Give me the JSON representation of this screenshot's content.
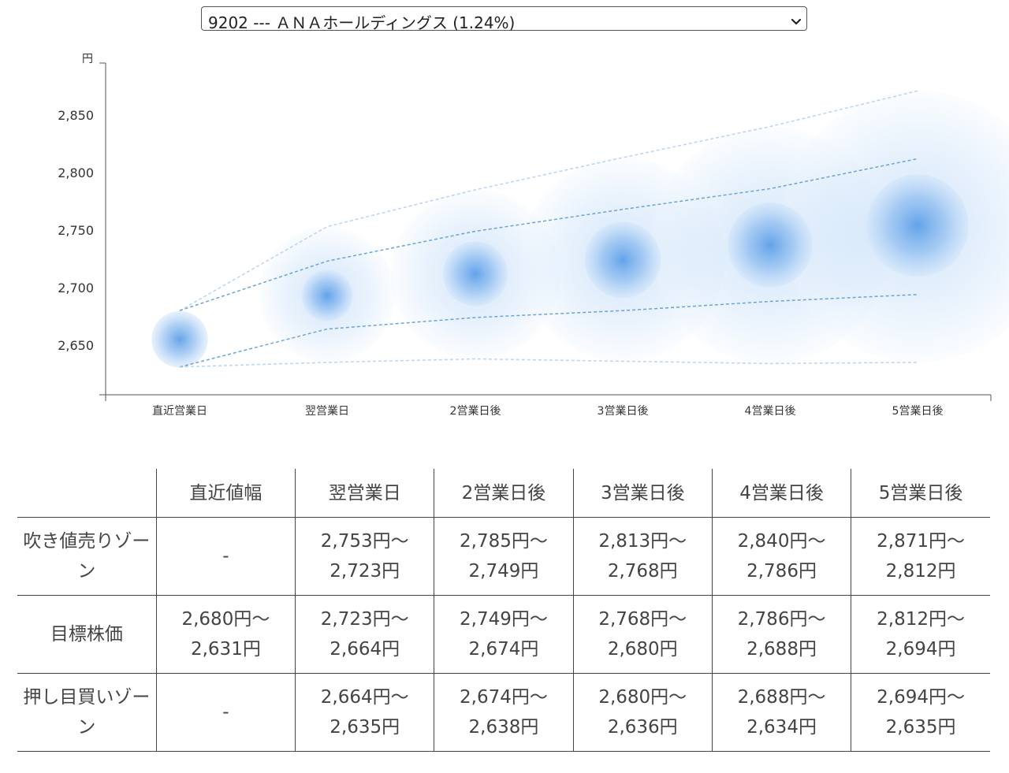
{
  "selector": {
    "value": "9202 --- ＡＮＡホールディングス (1.24%)"
  },
  "colors": {
    "bubble": "#4a90e2",
    "axis": "#555555",
    "grid_text": "#333333",
    "line": "#5b9bd5"
  },
  "chart_data": {
    "type": "scatter",
    "ylabel": "円",
    "yticks": [
      "2,650",
      "2,700",
      "2,750",
      "2,800",
      "2,850"
    ],
    "ylim": [
      2612,
      2900
    ],
    "categories": [
      "直近営業日",
      "翌営業日",
      "2営業日後",
      "3営業日後",
      "4営業日後",
      "5営業日後"
    ],
    "center": [
      2655,
      2693,
      2712,
      2724,
      2737,
      2754
    ],
    "upper_target": [
      2680,
      2723,
      2749,
      2768,
      2786,
      2812
    ],
    "lower_target": [
      2631,
      2664,
      2674,
      2680,
      2688,
      2694
    ],
    "upper_outer": [
      2680,
      2753,
      2785,
      2813,
      2840,
      2871
    ],
    "lower_outer": [
      2631,
      2635,
      2638,
      2636,
      2634,
      2635
    ]
  },
  "table": {
    "headers": [
      "",
      "直近値幅",
      "翌営業日",
      "2営業日後",
      "3営業日後",
      "4営業日後",
      "5営業日後"
    ],
    "rows": [
      {
        "label": "吹き値売りゾーン",
        "cells": [
          [
            "-"
          ],
          [
            "2,753円〜",
            "2,723円"
          ],
          [
            "2,785円〜",
            "2,749円"
          ],
          [
            "2,813円〜",
            "2,768円"
          ],
          [
            "2,840円〜",
            "2,786円"
          ],
          [
            "2,871円〜",
            "2,812円"
          ]
        ]
      },
      {
        "label": "目標株価",
        "cells": [
          [
            "2,680円〜",
            "2,631円"
          ],
          [
            "2,723円〜",
            "2,664円"
          ],
          [
            "2,749円〜",
            "2,674円"
          ],
          [
            "2,768円〜",
            "2,680円"
          ],
          [
            "2,786円〜",
            "2,688円"
          ],
          [
            "2,812円〜",
            "2,694円"
          ]
        ]
      },
      {
        "label": "押し目買いゾーン",
        "cells": [
          [
            "-"
          ],
          [
            "2,664円〜",
            "2,635円"
          ],
          [
            "2,674円〜",
            "2,638円"
          ],
          [
            "2,680円〜",
            "2,636円"
          ],
          [
            "2,688円〜",
            "2,634円"
          ],
          [
            "2,694円〜",
            "2,635円"
          ]
        ]
      }
    ]
  }
}
